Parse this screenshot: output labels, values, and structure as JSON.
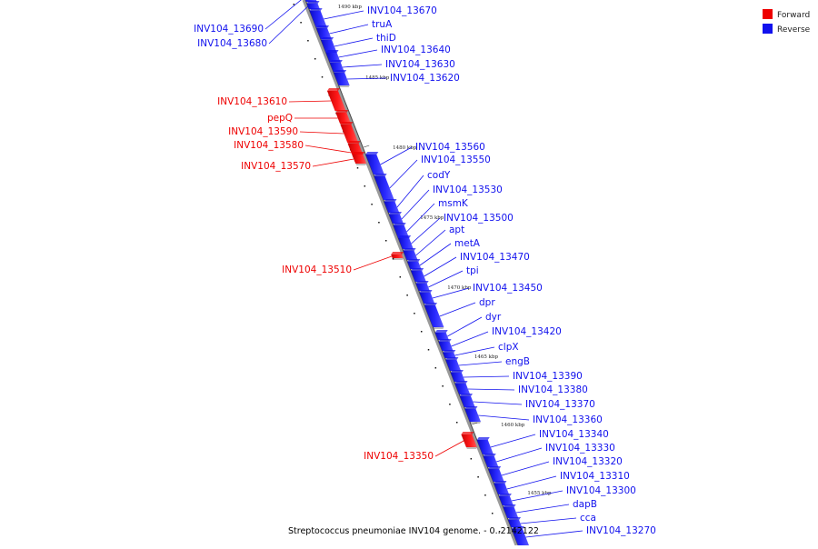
{
  "colors": {
    "forward": "#ee0000",
    "reverse": "#1111ee",
    "backbone": "#999999"
  },
  "legend": {
    "position": "top-right",
    "items": [
      {
        "label": "Forward",
        "color": "#ee0000"
      },
      {
        "label": "Reverse",
        "color": "#1111ee"
      }
    ]
  },
  "caption": "Streptococcus pneumoniae INV104 genome. - 0..2142122",
  "ticks": [
    "1490 kbp",
    "1485 kbp",
    "1480 kbp",
    "1475 kbp",
    "1470 kbp",
    "1465 kbp",
    "1460 kbp",
    "1455 kbp"
  ],
  "genes": [
    {
      "name": "INV104_13690",
      "strand": "reverse"
    },
    {
      "name": "INV104_13680",
      "strand": "reverse"
    },
    {
      "name": "INV104_13670",
      "strand": "reverse"
    },
    {
      "name": "truA",
      "strand": "reverse"
    },
    {
      "name": "thiD",
      "strand": "reverse"
    },
    {
      "name": "INV104_13640",
      "strand": "reverse"
    },
    {
      "name": "INV104_13630",
      "strand": "reverse"
    },
    {
      "name": "INV104_13620",
      "strand": "reverse"
    },
    {
      "name": "INV104_13610",
      "strand": "forward"
    },
    {
      "name": "pepQ",
      "strand": "forward"
    },
    {
      "name": "INV104_13590",
      "strand": "forward"
    },
    {
      "name": "INV104_13580",
      "strand": "forward"
    },
    {
      "name": "INV104_13570",
      "strand": "forward"
    },
    {
      "name": "INV104_13560",
      "strand": "reverse"
    },
    {
      "name": "INV104_13550",
      "strand": "reverse"
    },
    {
      "name": "codY",
      "strand": "reverse"
    },
    {
      "name": "INV104_13530",
      "strand": "reverse"
    },
    {
      "name": "msmK",
      "strand": "reverse"
    },
    {
      "name": "INV104_13500",
      "strand": "reverse"
    },
    {
      "name": "apt",
      "strand": "reverse"
    },
    {
      "name": "metA",
      "strand": "reverse"
    },
    {
      "name": "INV104_13470",
      "strand": "reverse"
    },
    {
      "name": "tpi",
      "strand": "reverse"
    },
    {
      "name": "INV104_13510",
      "strand": "forward"
    },
    {
      "name": "INV104_13450",
      "strand": "reverse"
    },
    {
      "name": "dpr",
      "strand": "reverse"
    },
    {
      "name": "dyr",
      "strand": "reverse"
    },
    {
      "name": "INV104_13420",
      "strand": "reverse"
    },
    {
      "name": "clpX",
      "strand": "reverse"
    },
    {
      "name": "engB",
      "strand": "reverse"
    },
    {
      "name": "INV104_13390",
      "strand": "reverse"
    },
    {
      "name": "INV104_13380",
      "strand": "reverse"
    },
    {
      "name": "INV104_13370",
      "strand": "reverse"
    },
    {
      "name": "INV104_13360",
      "strand": "reverse"
    },
    {
      "name": "INV104_13340",
      "strand": "reverse"
    },
    {
      "name": "INV104_13330",
      "strand": "reverse"
    },
    {
      "name": "INV104_13350",
      "strand": "forward"
    },
    {
      "name": "INV104_13320",
      "strand": "reverse"
    },
    {
      "name": "INV104_13310",
      "strand": "reverse"
    },
    {
      "name": "INV104_13300",
      "strand": "reverse"
    },
    {
      "name": "dapB",
      "strand": "reverse"
    },
    {
      "name": "cca",
      "strand": "reverse"
    },
    {
      "name": "INV104_13270",
      "strand": "reverse"
    }
  ]
}
